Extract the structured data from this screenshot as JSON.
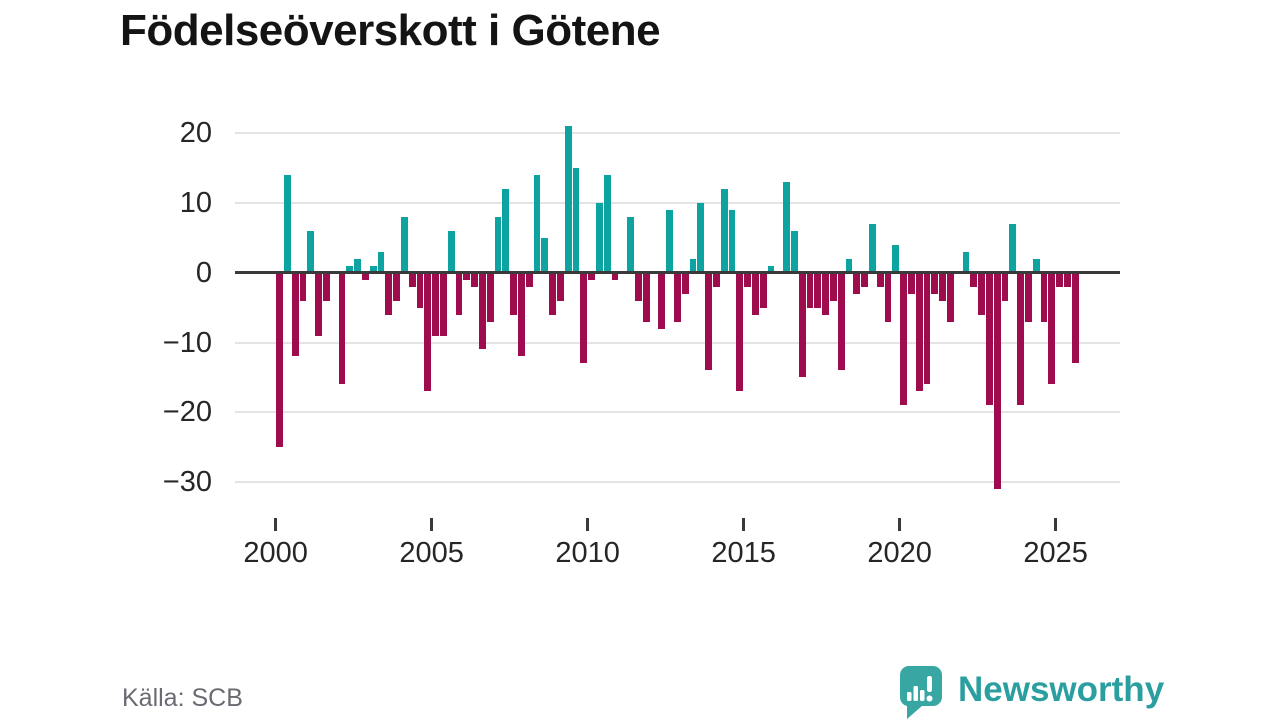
{
  "page": {
    "title": "Födelseöverskott i Götene",
    "source": "Källa: SCB"
  },
  "branding": {
    "name": "Newsworthy",
    "icon": "bar-chart-speech-bubble-icon",
    "color": "#2b9fa0"
  },
  "chart_data": {
    "type": "bar",
    "title": "Födelseöverskott i Götene",
    "frequency": "quarterly",
    "start_year": 2000,
    "end": "2025 Q3",
    "grid": true,
    "legend": false,
    "x_tick_labels": [
      "2000",
      "2005",
      "2010",
      "2015",
      "2020",
      "2025"
    ],
    "y_ticks": [
      20,
      10,
      0,
      -10,
      -20,
      -30
    ],
    "y_tick_labels": [
      "20",
      "10",
      "0",
      "−10",
      "−20",
      "−30"
    ],
    "ylim": [
      -33,
      23
    ],
    "bar_colors": {
      "positive": "#0da3a0",
      "negative": "#9e0c4d"
    },
    "values_by_year": {
      "2000": [
        -25,
        14,
        -12,
        -4
      ],
      "2001": [
        6,
        -9,
        -4,
        0
      ],
      "2002": [
        -16,
        1,
        2,
        -1
      ],
      "2003": [
        1,
        3,
        -6,
        -4
      ],
      "2004": [
        8,
        -2,
        -5,
        -17
      ],
      "2005": [
        -9,
        -9,
        6,
        -6
      ],
      "2006": [
        -1,
        -2,
        -11,
        -7
      ],
      "2007": [
        8,
        12,
        -6,
        -12
      ],
      "2008": [
        -2,
        14,
        5,
        -6
      ],
      "2009": [
        -4,
        21,
        15,
        -13
      ],
      "2010": [
        -1,
        10,
        14,
        -1
      ],
      "2011": [
        0,
        8,
        -4,
        -7
      ],
      "2012": [
        0,
        -8,
        9,
        -7
      ],
      "2013": [
        -3,
        2,
        10,
        -14
      ],
      "2014": [
        -2,
        12,
        9,
        -17
      ],
      "2015": [
        -2,
        -6,
        -5,
        1
      ],
      "2016": [
        0,
        13,
        6,
        -15
      ],
      "2017": [
        -5,
        -5,
        -6,
        -4
      ],
      "2018": [
        -14,
        2,
        -3,
        -2
      ],
      "2019": [
        7,
        -2,
        -7,
        4
      ],
      "2020": [
        -19,
        -3,
        -17,
        -16
      ],
      "2021": [
        -3,
        -4,
        -7,
        0
      ],
      "2022": [
        3,
        -2,
        -6,
        -19
      ],
      "2023": [
        -31,
        -4,
        7,
        -19
      ],
      "2024": [
        -7,
        2,
        -7,
        -16
      ],
      "2025": [
        -2,
        -2,
        -13
      ]
    }
  }
}
